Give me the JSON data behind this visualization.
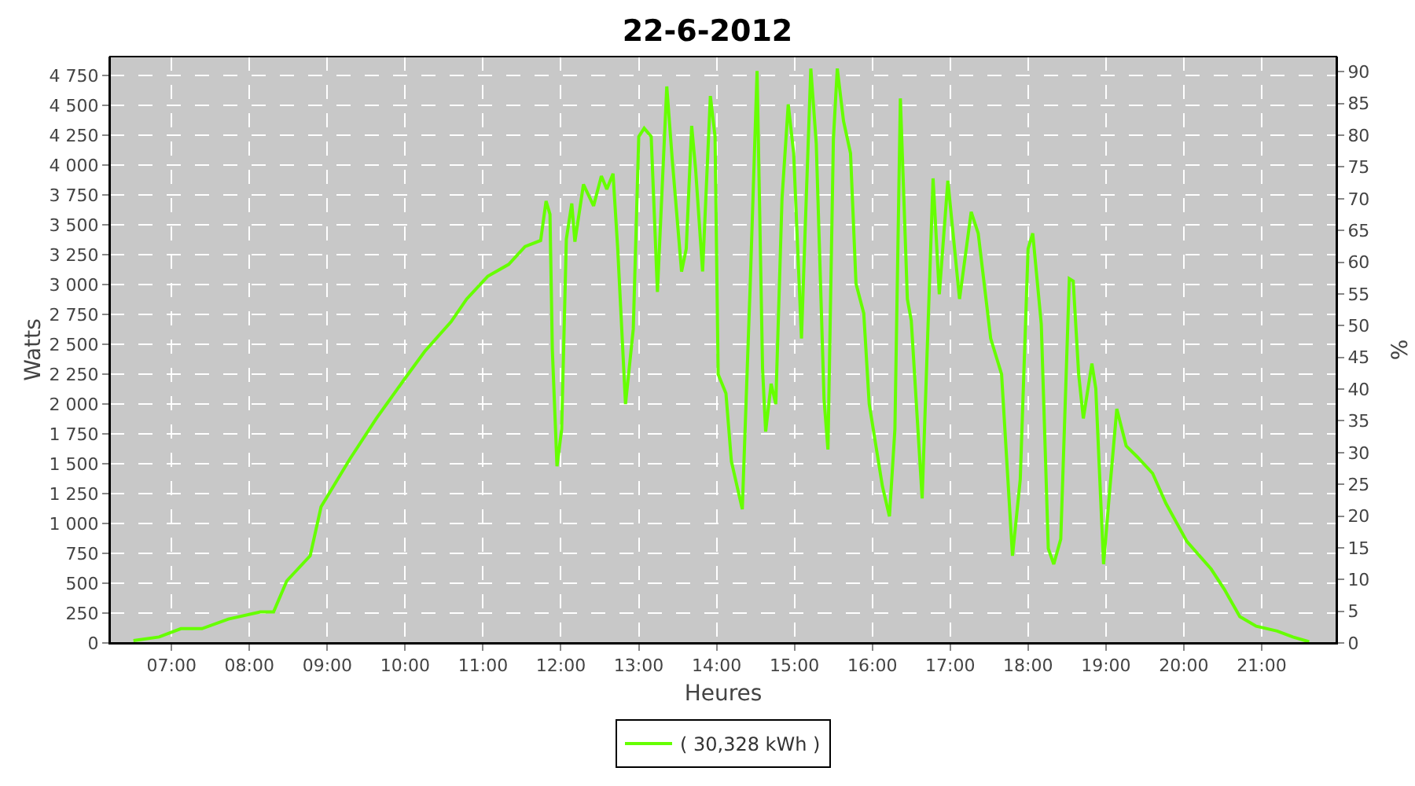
{
  "chart_data": {
    "type": "line",
    "title": "22-6-2012",
    "xlabel": "Heures",
    "ylabel": "Watts",
    "y2label": "%",
    "xlim": [
      6.21,
      21.96
    ],
    "ylim": [
      0,
      4910
    ],
    "y2lim": [
      0,
      92.4
    ],
    "xticks": [
      {
        "value": 7,
        "label": "07:00"
      },
      {
        "value": 8,
        "label": "08:00"
      },
      {
        "value": 9,
        "label": "09:00"
      },
      {
        "value": 10,
        "label": "10:00"
      },
      {
        "value": 11,
        "label": "11:00"
      },
      {
        "value": 12,
        "label": "12:00"
      },
      {
        "value": 13,
        "label": "13:00"
      },
      {
        "value": 14,
        "label": "14:00"
      },
      {
        "value": 15,
        "label": "15:00"
      },
      {
        "value": 16,
        "label": "16:00"
      },
      {
        "value": 17,
        "label": "17:00"
      },
      {
        "value": 18,
        "label": "18:00"
      },
      {
        "value": 19,
        "label": "19:00"
      },
      {
        "value": 20,
        "label": "20:00"
      },
      {
        "value": 21,
        "label": "21:00"
      }
    ],
    "yticks": [
      0,
      250,
      500,
      750,
      {
        "value": 1000,
        "label": "1 000"
      },
      {
        "value": 1250,
        "label": "1 250"
      },
      {
        "value": 1500,
        "label": "1 500"
      },
      {
        "value": 1750,
        "label": "1 750"
      },
      {
        "value": 2000,
        "label": "2 000"
      },
      {
        "value": 2250,
        "label": "2 250"
      },
      {
        "value": 2500,
        "label": "2 500"
      },
      {
        "value": 2750,
        "label": "2 750"
      },
      {
        "value": 3000,
        "label": "3 000"
      },
      {
        "value": 3250,
        "label": "3 250"
      },
      {
        "value": 3500,
        "label": "3 500"
      },
      {
        "value": 3750,
        "label": "3 750"
      },
      {
        "value": 4000,
        "label": "4 000"
      },
      {
        "value": 4250,
        "label": "4 250"
      },
      {
        "value": 4500,
        "label": "4 500"
      },
      {
        "value": 4750,
        "label": "4 750"
      }
    ],
    "y2ticks": [
      0,
      5,
      10,
      15,
      20,
      25,
      30,
      35,
      40,
      45,
      50,
      55,
      60,
      65,
      70,
      75,
      80,
      85,
      90
    ],
    "grid": true,
    "legend": "bottom",
    "marker": "none",
    "line_style": "solid",
    "series": [
      {
        "name": "( 30,328 kWh )",
        "color": "#66ff00",
        "x": [
          6.51,
          6.84,
          7.12,
          7.39,
          7.73,
          8.14,
          8.31,
          8.48,
          8.78,
          8.92,
          9.29,
          9.63,
          9.97,
          10.25,
          10.59,
          10.79,
          11.06,
          11.33,
          11.54,
          11.74,
          11.81,
          11.86,
          11.89,
          11.95,
          12.01,
          12.07,
          12.14,
          12.18,
          12.29,
          12.42,
          12.52,
          12.59,
          12.67,
          12.73,
          12.83,
          12.93,
          13.0,
          13.07,
          13.16,
          13.24,
          13.36,
          13.43,
          13.55,
          13.61,
          13.68,
          13.73,
          13.82,
          13.92,
          13.98,
          14.02,
          14.12,
          14.19,
          14.33,
          14.43,
          14.52,
          14.59,
          14.63,
          14.7,
          14.76,
          14.84,
          14.92,
          14.99,
          15.09,
          15.14,
          15.21,
          15.28,
          15.38,
          15.43,
          15.5,
          15.55,
          15.63,
          15.72,
          15.79,
          15.89,
          15.96,
          16.13,
          16.22,
          16.29,
          16.36,
          16.45,
          16.5,
          16.64,
          16.78,
          16.86,
          16.97,
          17.12,
          17.27,
          17.36,
          17.52,
          17.66,
          17.8,
          17.9,
          18.0,
          18.06,
          18.17,
          18.26,
          18.33,
          18.42,
          18.53,
          18.58,
          18.65,
          18.71,
          18.82,
          18.87,
          18.97,
          19.05,
          19.14,
          19.26,
          19.4,
          19.6,
          19.77,
          20.04,
          20.35,
          20.52,
          20.72,
          20.93,
          21.2,
          21.4,
          21.61
        ],
        "values": [
          20,
          50,
          120,
          120,
          200,
          260,
          260,
          520,
          730,
          1140,
          1540,
          1880,
          2190,
          2440,
          2690,
          2880,
          3070,
          3170,
          3320,
          3370,
          3700,
          3590,
          2460,
          1480,
          1790,
          3380,
          3680,
          3360,
          3840,
          3660,
          3910,
          3800,
          3930,
          3300,
          2000,
          2630,
          4240,
          4310,
          4240,
          2940,
          4660,
          4050,
          3110,
          3300,
          4330,
          3970,
          3110,
          4580,
          4240,
          2250,
          2090,
          1520,
          1120,
          2970,
          4790,
          2300,
          1770,
          2170,
          2000,
          3720,
          4510,
          4100,
          2550,
          3510,
          4810,
          4180,
          2040,
          1620,
          4220,
          4810,
          4370,
          4100,
          3010,
          2760,
          2000,
          1310,
          1060,
          1790,
          4560,
          2880,
          2700,
          1210,
          3890,
          2920,
          3870,
          2880,
          3610,
          3430,
          2550,
          2250,
          730,
          1370,
          3300,
          3430,
          2670,
          790,
          660,
          870,
          3050,
          3030,
          2250,
          1880,
          2340,
          2130,
          660,
          1290,
          1960,
          1650,
          1560,
          1420,
          1170,
          850,
          620,
          450,
          220,
          140,
          100,
          50,
          10
        ]
      }
    ]
  }
}
